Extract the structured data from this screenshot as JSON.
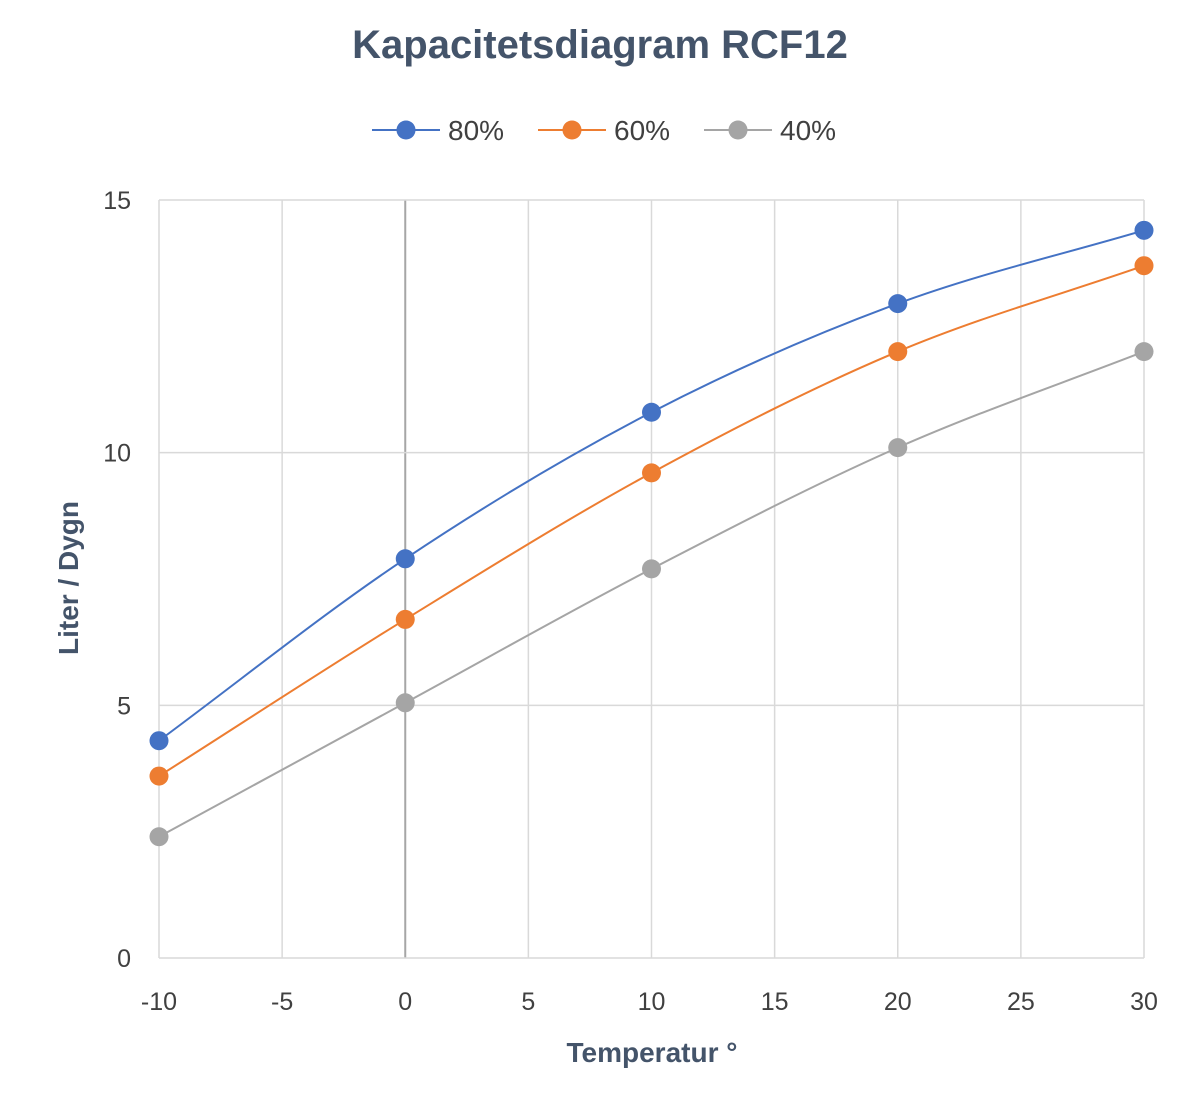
{
  "chart_data": {
    "type": "line",
    "title": "Kapacitetsdiagram RCF12",
    "xlabel": "Temperatur °",
    "ylabel": "Liter / Dygn",
    "x": [
      -10,
      0,
      10,
      20,
      30
    ],
    "xlim": [
      -10,
      30
    ],
    "ylim": [
      0,
      15
    ],
    "x_ticks": [
      "-10",
      "-5",
      "0",
      "5",
      "10",
      "15",
      "20",
      "25",
      "30"
    ],
    "y_ticks": [
      "0",
      "5",
      "10",
      "15"
    ],
    "x_tick_values": [
      -10,
      -5,
      0,
      5,
      10,
      15,
      20,
      25,
      30
    ],
    "y_tick_values": [
      0,
      5,
      10,
      15
    ],
    "grid": true,
    "smooth": true,
    "legend_position": "top",
    "series": [
      {
        "name": "80%",
        "color": "#4472c4",
        "values": [
          4.3,
          7.9,
          10.8,
          12.95,
          14.4
        ]
      },
      {
        "name": "60%",
        "color": "#ed7d31",
        "values": [
          3.6,
          6.7,
          9.6,
          12.0,
          13.7
        ]
      },
      {
        "name": "40%",
        "color": "#a5a5a5",
        "values": [
          2.4,
          5.05,
          7.7,
          10.1,
          12.0
        ]
      }
    ]
  }
}
